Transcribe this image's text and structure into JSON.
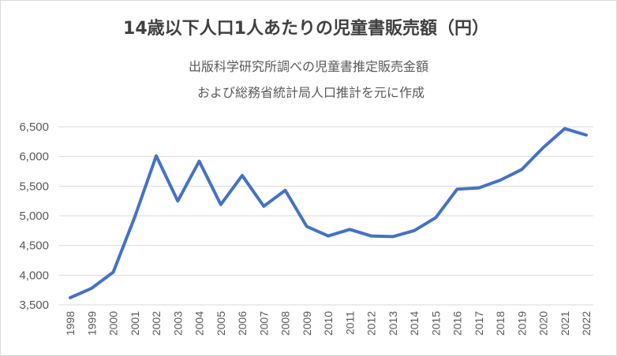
{
  "chart_data": {
    "type": "line",
    "title": "14歳以下人口1人あたりの児童書販売額（円）",
    "subtitle_lines": [
      "出版科学研究所調べの児童書推定販売金額",
      "および総務省統計局人口推計を元に作成"
    ],
    "xlabel": "",
    "ylabel": "",
    "x": [
      "1998",
      "1999",
      "2000",
      "2001",
      "2002",
      "2003",
      "2004",
      "2005",
      "2006",
      "2007",
      "2008",
      "2009",
      "2010",
      "2011",
      "2012",
      "2013",
      "2014",
      "2015",
      "2016",
      "2017",
      "2018",
      "2019",
      "2020",
      "2021",
      "2022"
    ],
    "series": [
      {
        "name": "14歳以下人口1人あたりの児童書販売額",
        "color": "#4472c4",
        "values": [
          3620,
          3780,
          4050,
          4980,
          6010,
          5250,
          5920,
          5190,
          5680,
          5160,
          5430,
          4820,
          4660,
          4770,
          4660,
          4650,
          4750,
          4970,
          5450,
          5470,
          5600,
          5780,
          6150,
          6470,
          6360
        ]
      }
    ],
    "ylim": [
      3500,
      6500
    ],
    "yticks": [
      "3,500",
      "4,000",
      "4,500",
      "5,000",
      "5,500",
      "6,000",
      "6,500"
    ],
    "ytick_values": [
      3500,
      4000,
      4500,
      5000,
      5500,
      6000,
      6500
    ],
    "grid": true,
    "legend": "none"
  }
}
